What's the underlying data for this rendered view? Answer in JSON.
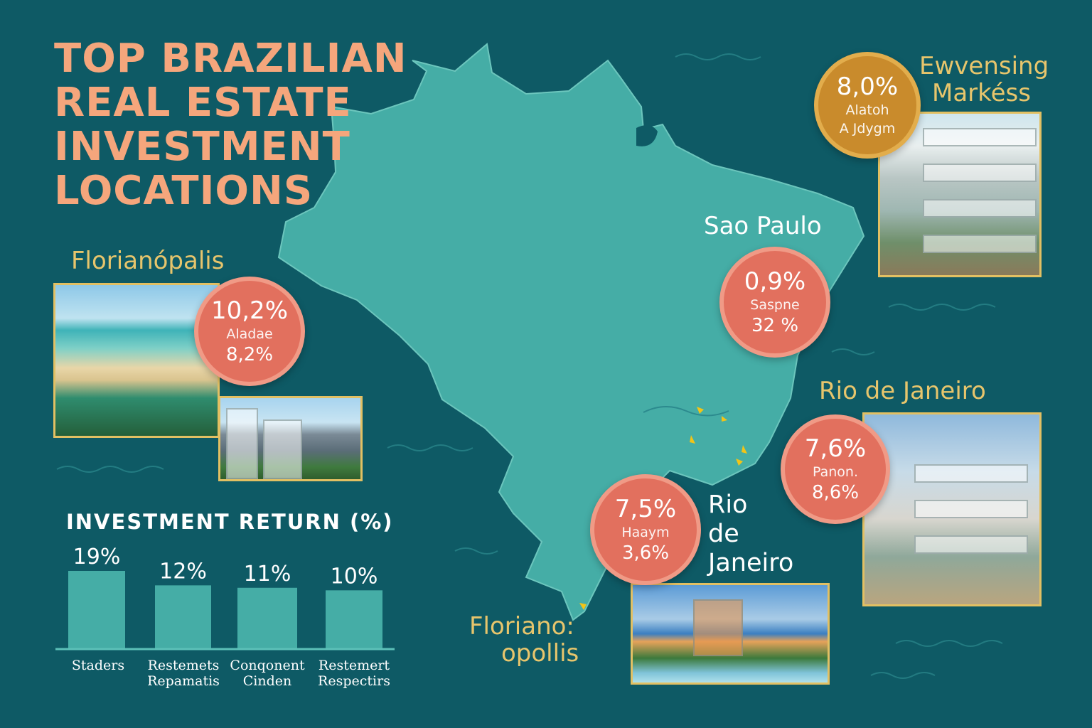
{
  "title": [
    "TOP BRAZILIAN",
    "REAL ESTATE",
    "INVESTMENT",
    "LOCATIONS"
  ],
  "colors": {
    "background": "#0e5a65",
    "map": "#45ada6",
    "title": "#f5a67c",
    "gold": "#e7c56c",
    "circle": "#e2705e",
    "circle_gold": "#c98b2c"
  },
  "locations": {
    "florianopolis_top": {
      "name": "Florianópalis",
      "value": "10,2%",
      "label": "Aladae",
      "secondary": "8,2%"
    },
    "emerging": {
      "name_line1": "Ewvensing",
      "name_line2": "Markéss",
      "value": "8,0%",
      "label": "Alatoh",
      "secondary": "A Jdygm"
    },
    "sao_paulo": {
      "name": "Sao Paulo",
      "value": "0,9%",
      "label": "Saspne",
      "secondary": "32 %"
    },
    "rio_right": {
      "name": "Rio de Janeiro",
      "value": "7,6%",
      "label": "Panon.",
      "secondary": "8,6%"
    },
    "rio_center": {
      "name_lines": [
        "Rio",
        "de",
        "Janeiro"
      ],
      "value": "7,5%",
      "label": "Haaym",
      "secondary": "3,6%"
    },
    "florianopolis_bottom": {
      "name_line1": "Floriano:",
      "name_line2": "opollis"
    }
  },
  "chart_data": {
    "type": "bar",
    "title": "INVESTMENT RETURN (%)",
    "categories": [
      "Staders",
      "Restemets\nRepamatis",
      "Conqonent\nCinden",
      "Restemert\nRespectirs"
    ],
    "values": [
      19,
      12,
      11,
      10
    ],
    "value_labels": [
      "19%",
      "12%",
      "11%",
      "10%"
    ],
    "ylim": [
      0,
      20
    ],
    "grid": false,
    "color": "#45ada6"
  }
}
